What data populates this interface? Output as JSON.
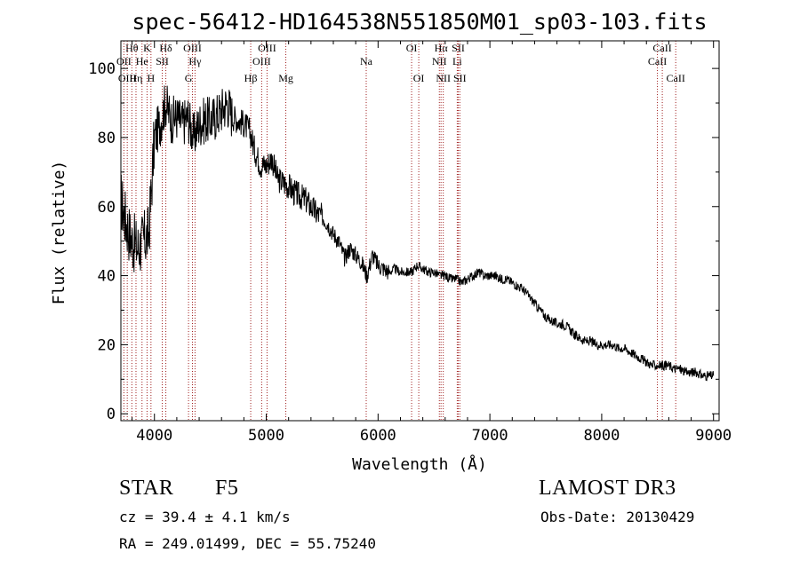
{
  "chart_data": {
    "type": "line",
    "title": "spec-56412-HD164538N551850M01_sp03-103.fits",
    "xlabel": "Wavelength (Å)",
    "ylabel": "Flux (relative)",
    "xlim": [
      3700,
      9050
    ],
    "ylim": [
      -2,
      108
    ],
    "xticks": [
      4000,
      5000,
      6000,
      7000,
      8000,
      9000
    ],
    "yticks": [
      0,
      20,
      40,
      60,
      80,
      100
    ],
    "series": [
      {
        "name": "flux",
        "color": "#000000",
        "x": [
          3700,
          3750,
          3800,
          3850,
          3900,
          3950,
          4000,
          4050,
          4100,
          4150,
          4200,
          4250,
          4300,
          4350,
          4400,
          4450,
          4500,
          4550,
          4600,
          4650,
          4700,
          4750,
          4800,
          4850,
          4900,
          4950,
          5000,
          5050,
          5100,
          5150,
          5200,
          5250,
          5300,
          5350,
          5400,
          5450,
          5500,
          5550,
          5600,
          5650,
          5700,
          5750,
          5800,
          5850,
          5900,
          5950,
          6000,
          6050,
          6100,
          6150,
          6200,
          6250,
          6300,
          6350,
          6400,
          6450,
          6500,
          6550,
          6600,
          6650,
          6700,
          6750,
          6800,
          6850,
          6900,
          6950,
          7000,
          7050,
          7100,
          7150,
          7200,
          7250,
          7300,
          7350,
          7400,
          7450,
          7500,
          7550,
          7600,
          7650,
          7700,
          7750,
          7800,
          7850,
          7900,
          7950,
          8000,
          8050,
          8100,
          8150,
          8200,
          8250,
          8300,
          8350,
          8400,
          8450,
          8500,
          8550,
          8600,
          8650,
          8700,
          8750,
          8800,
          8850,
          8900,
          8950,
          9000
        ],
        "y": [
          62,
          55,
          50,
          48,
          50,
          52,
          80,
          84,
          90,
          85,
          86,
          84,
          86,
          80,
          84,
          85,
          85,
          86,
          88,
          90,
          86,
          85,
          84,
          82,
          76,
          72,
          72,
          74,
          68,
          67,
          66,
          64,
          63,
          62,
          60,
          58,
          57,
          55,
          52,
          50,
          45,
          48,
          46,
          44,
          40,
          46,
          43,
          42,
          41,
          42,
          41,
          41,
          41,
          43,
          42,
          41,
          41,
          40,
          40,
          39,
          39,
          38,
          39,
          40,
          41,
          40,
          40,
          40,
          39,
          39,
          38,
          37,
          36,
          34,
          32,
          30,
          28,
          27,
          26,
          26,
          25,
          23,
          22,
          21,
          21,
          20,
          20,
          20,
          20,
          19,
          19,
          18,
          17,
          16,
          15,
          14,
          14,
          14,
          14,
          13,
          13,
          12,
          12,
          12,
          11,
          11,
          11
        ]
      }
    ],
    "lines": [
      {
        "label": "Hθ",
        "x": 3798,
        "row": 1
      },
      {
        "label": "OII",
        "x": 3727,
        "row": 2
      },
      {
        "label": "OIII",
        "x": 3757,
        "row": 3
      },
      {
        "label": "Hη",
        "x": 3835,
        "row": 3
      },
      {
        "label": "He",
        "x": 3889,
        "row": 2
      },
      {
        "label": "K",
        "x": 3934,
        "row": 1
      },
      {
        "label": "H",
        "x": 3969,
        "row": 3
      },
      {
        "label": "SII",
        "x": 4070,
        "row": 2
      },
      {
        "label": "Hδ",
        "x": 4102,
        "row": 1
      },
      {
        "label": "G",
        "x": 4305,
        "row": 3
      },
      {
        "label": "OIII",
        "x": 4340,
        "row": 1
      },
      {
        "label": "Hγ",
        "x": 4363,
        "row": 2
      },
      {
        "label": "Hβ",
        "x": 4861,
        "row": 3
      },
      {
        "label": "OIII",
        "x": 4959,
        "row": 2
      },
      {
        "label": "OIII",
        "x": 5007,
        "row": 1
      },
      {
        "label": "Mg",
        "x": 5175,
        "row": 3
      },
      {
        "label": "Na",
        "x": 5894,
        "row": 2
      },
      {
        "label": "OI",
        "x": 6300,
        "row": 1
      },
      {
        "label": "OI",
        "x": 6364,
        "row": 3
      },
      {
        "label": "Hα",
        "x": 6563,
        "row": 1
      },
      {
        "label": "NII",
        "x": 6548,
        "row": 2
      },
      {
        "label": "NII",
        "x": 6583,
        "row": 3
      },
      {
        "label": "SII",
        "x": 6717,
        "row": 1
      },
      {
        "label": "Li",
        "x": 6708,
        "row": 2
      },
      {
        "label": "SII",
        "x": 6731,
        "row": 3
      },
      {
        "label": "CaII",
        "x": 8498,
        "row": 2
      },
      {
        "label": "CaII",
        "x": 8542,
        "row": 1
      },
      {
        "label": "CaII",
        "x": 8662,
        "row": 3
      }
    ]
  },
  "info": {
    "object_class": "STAR",
    "subclass": "F5",
    "survey": "LAMOST DR3",
    "redshift": "cz = 39.4 ± 4.1 km/s",
    "obs_date": "Obs-Date: 20130429",
    "coords": "RA = 249.01499, DEC =  55.75240"
  }
}
